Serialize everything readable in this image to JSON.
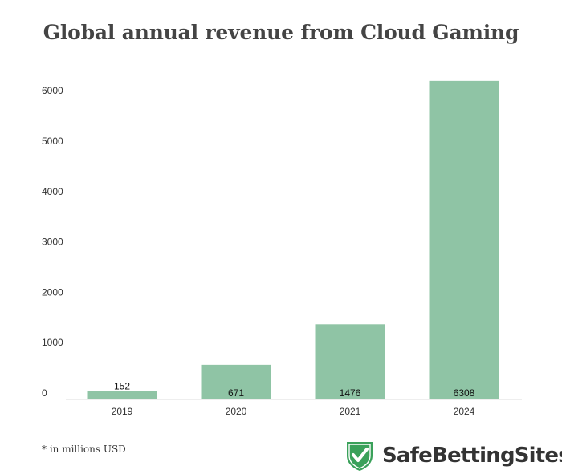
{
  "chart_data": {
    "type": "bar",
    "title": "Global annual revenue from Cloud Gaming",
    "categories": [
      "2019",
      "2020",
      "2021",
      "2024"
    ],
    "values": [
      152,
      671,
      1476,
      6308
    ],
    "data_labels": [
      "152",
      "671",
      "1476",
      "6308"
    ],
    "y_ticks": [
      "0",
      "1000",
      "2000",
      "3000",
      "4000",
      "5000",
      "6000"
    ],
    "ylim": [
      0,
      6400
    ],
    "xlabel": "",
    "ylabel": "",
    "grid": false,
    "bar_color": "#8fc4a5"
  },
  "footnote": "* in millions USD",
  "brand": {
    "name": "SafeBettingSites",
    "icon": "shield-check-icon",
    "icon_color": "#3aa15a"
  }
}
